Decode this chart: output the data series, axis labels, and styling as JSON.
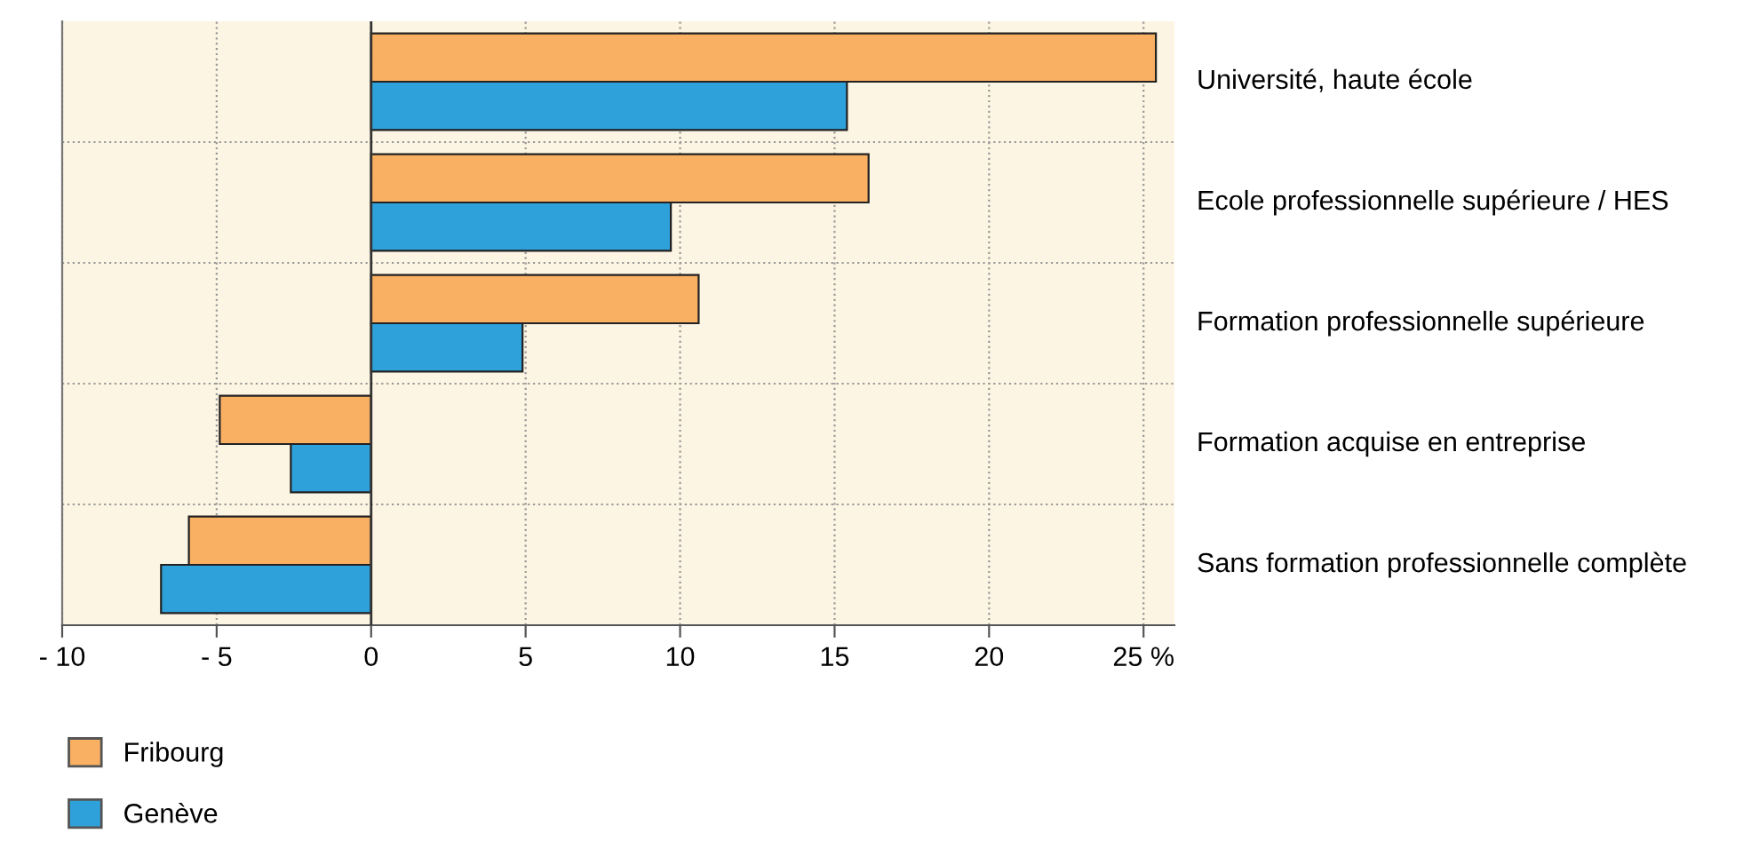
{
  "chart_data": {
    "type": "bar",
    "orientation": "horizontal",
    "categories": [
      "Université, haute école",
      "Ecole professionnelle supérieure / HES",
      "Formation professionnelle supérieure",
      "Formation acquise en entreprise",
      "Sans formation professionnelle complète"
    ],
    "series": [
      {
        "name": "Fribourg",
        "color": "#f9b062",
        "values": [
          25.4,
          16.1,
          10.6,
          -4.9,
          -5.9
        ]
      },
      {
        "name": "Genève",
        "color": "#2fa1da",
        "values": [
          15.4,
          9.7,
          4.9,
          -2.6,
          -6.8
        ]
      }
    ],
    "xlim": [
      -10,
      26
    ],
    "xticks": [
      {
        "value": -10,
        "label": "- 10"
      },
      {
        "value": -5,
        "label": "- 5"
      },
      0,
      5,
      10,
      15,
      20,
      {
        "value": 25,
        "label": "25 %"
      }
    ],
    "grid": true,
    "legend": "bottom left"
  }
}
